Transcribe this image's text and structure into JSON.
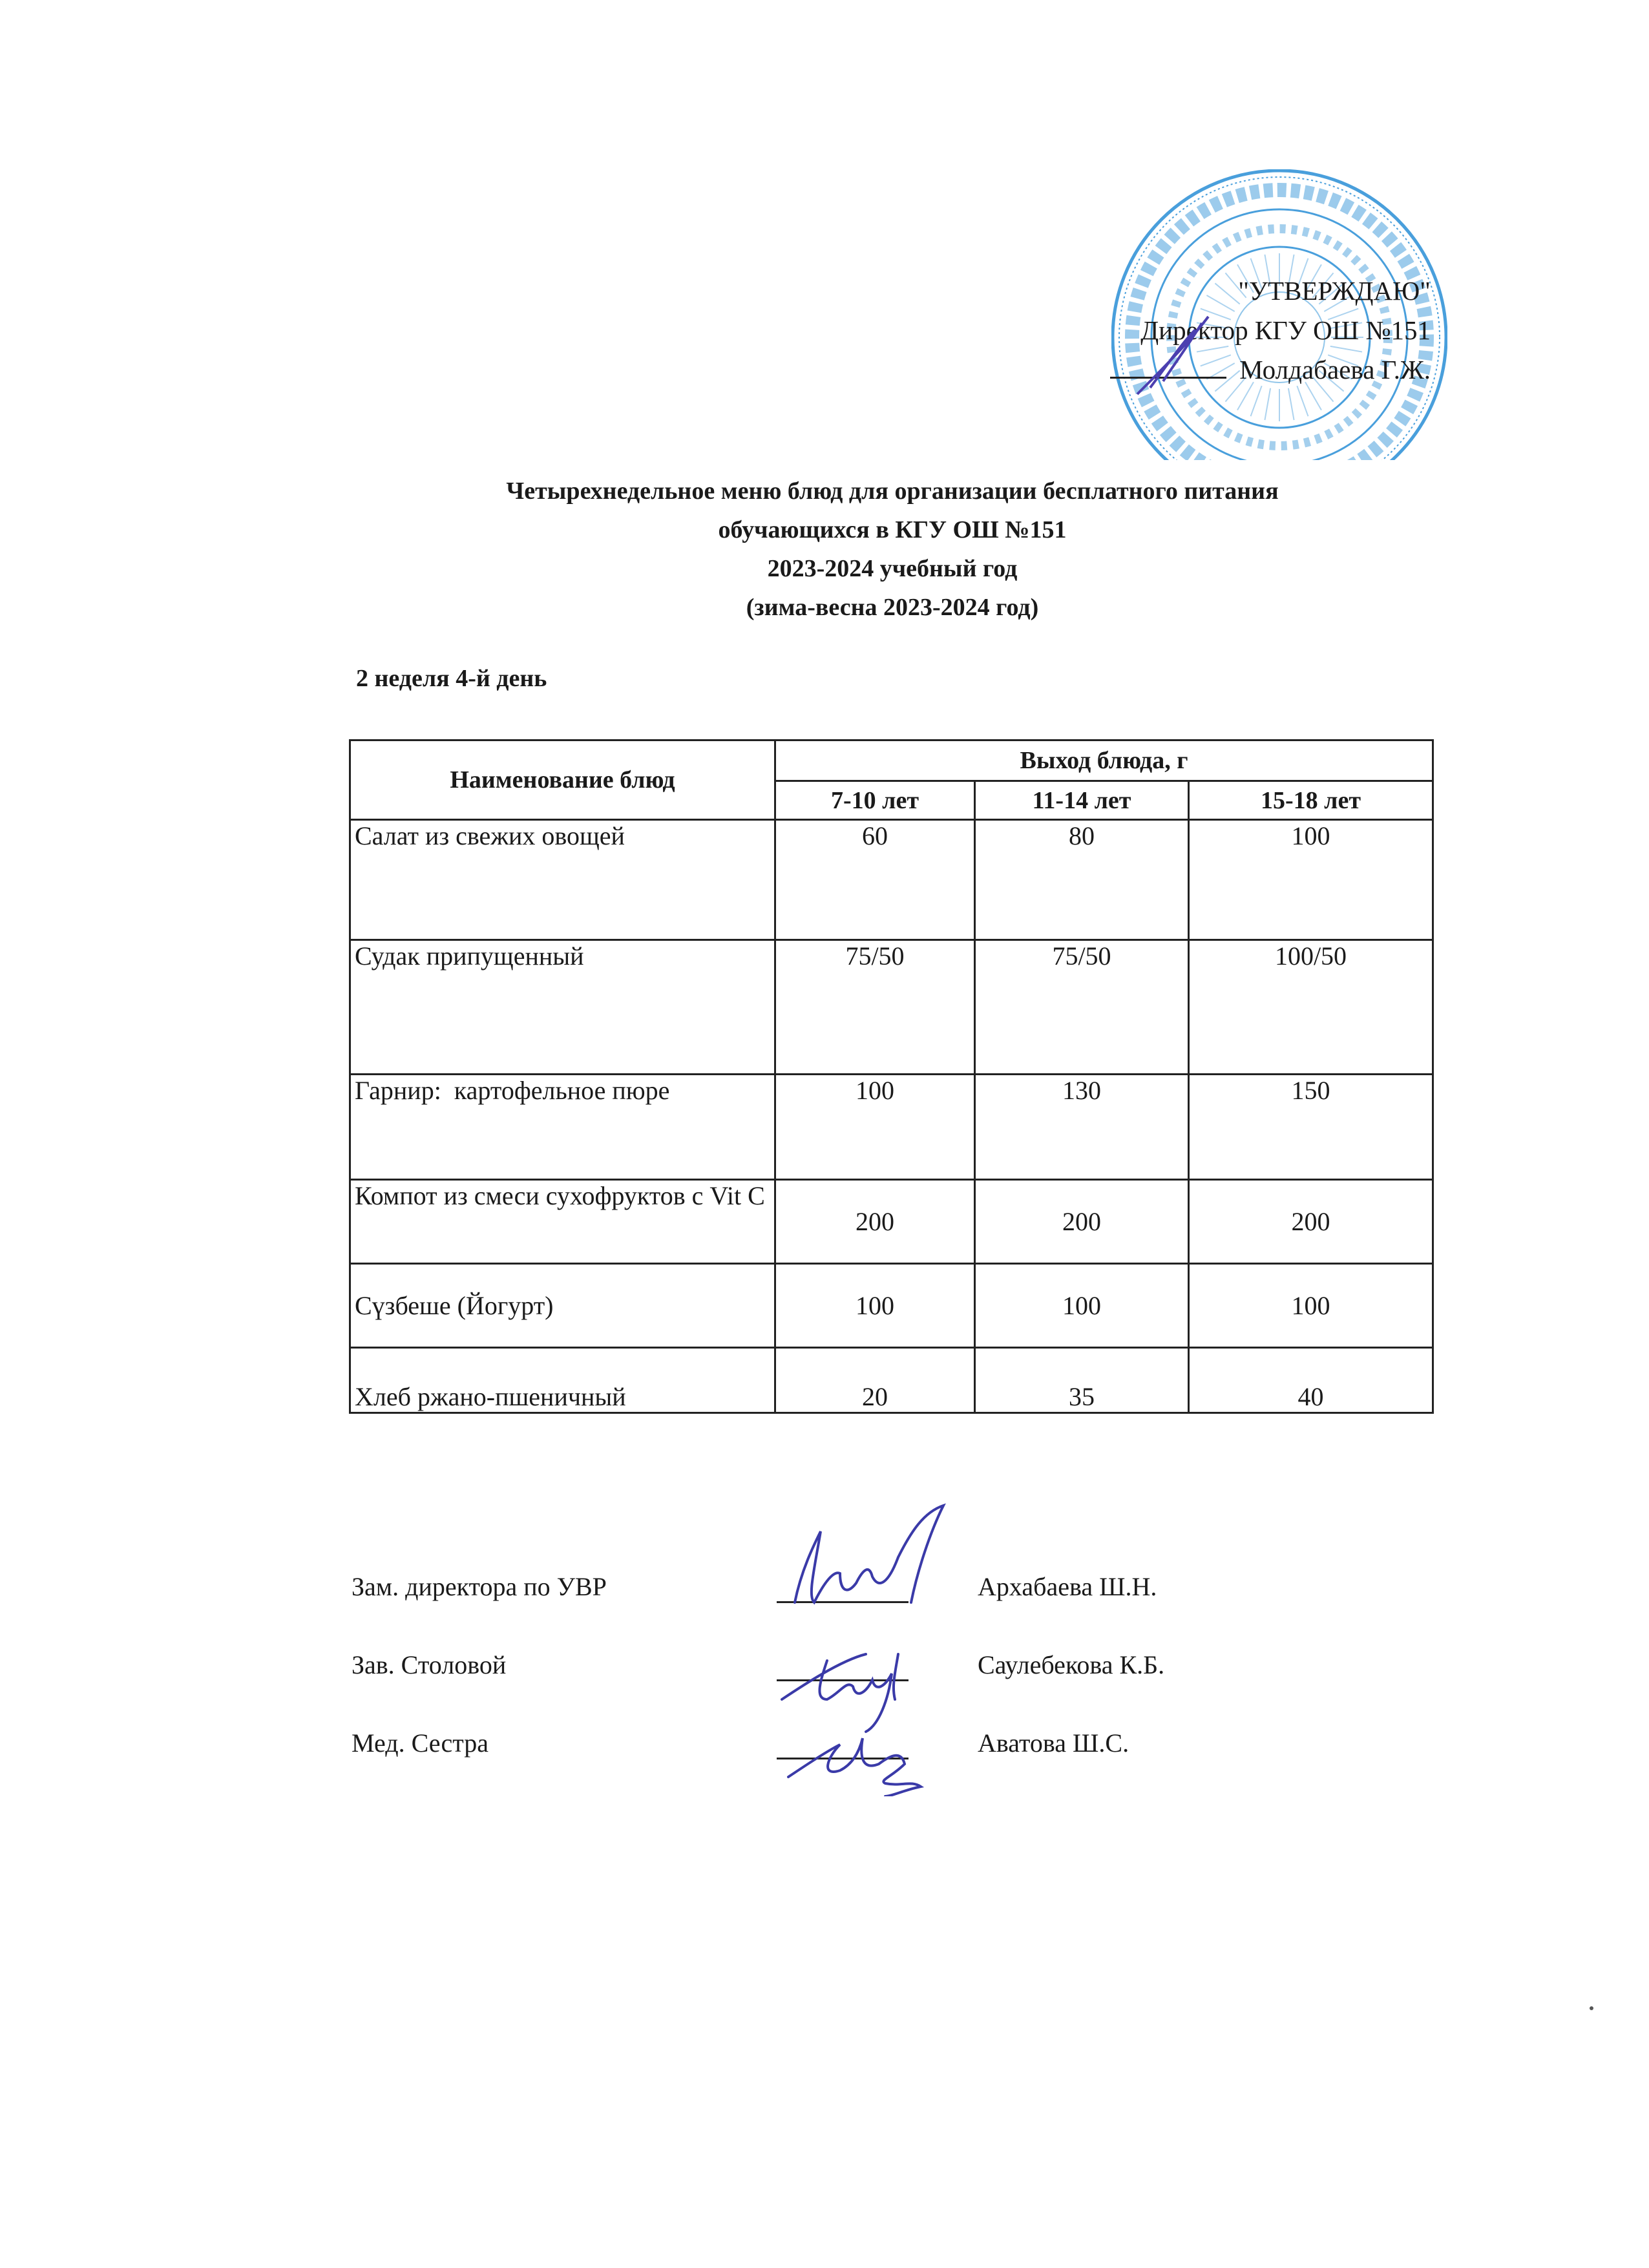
{
  "approval": {
    "heading": "\"УТВЕРЖДАЮ\"",
    "position": "Директор КГУ ОШ №151",
    "name": "Молдабаева Г.Ж."
  },
  "stamp": {
    "color": "#2a8fd6",
    "outer_text": "ҚАЗАҚСТАН РЕСПУБЛИКАСЫ «АЛМАТЫ ҚАЛАСЫ БІЛІМ БАСҚАРМАСЫНЫҢ №151 ЖАЛПЫ БІЛІМ БЕРЕТІН МЕКТЕП» КОММУНАЛДЫҚ МЕМЛЕКЕТТІК МЕКЕМЕСІ",
    "inner_text": "БСН/БИН 961140000679"
  },
  "title": {
    "line1": "Четырехнедельное меню блюд для организации бесплатного питания",
    "line2": "обучающихся в КГУ ОШ №151",
    "line3": "2023-2024 учебный год",
    "line4": "(зима-весна 2023-2024 год)"
  },
  "day_label": "2 неделя 4-й день",
  "table": {
    "header_name": "Наименование блюд",
    "header_yield": "Выход блюда, г",
    "age_groups": [
      "7-10 лет",
      "11-14 лет",
      "15-18 лет"
    ],
    "rows": [
      {
        "name": "Салат из свежих овощей",
        "values": [
          "60",
          "80",
          "100"
        ]
      },
      {
        "name": "Судак припущенный",
        "values": [
          "75/50",
          "75/50",
          "100/50"
        ]
      },
      {
        "name": "Гарнир:  картофельное пюре",
        "values": [
          "100",
          "130",
          "150"
        ]
      },
      {
        "name": "Компот из смеси сухофруктов с Vit C",
        "values": [
          "200",
          "200",
          "200"
        ]
      },
      {
        "name": "Сүзбеше (Йогурт)",
        "values": [
          "100",
          "100",
          "100"
        ]
      },
      {
        "name": "Хлеб ржано-пшеничный",
        "values": [
          "20",
          "35",
          "40"
        ]
      }
    ]
  },
  "signatures": [
    {
      "role": "Зам. директора по УВР",
      "name": "Архабаева Ш.Н."
    },
    {
      "role": "Зав. Столовой",
      "name": "Саулебекова К.Б."
    },
    {
      "role": "Мед. Сестра",
      "name": "Аватова Ш.С."
    }
  ],
  "signature_ink_color": "#3a3aa8"
}
